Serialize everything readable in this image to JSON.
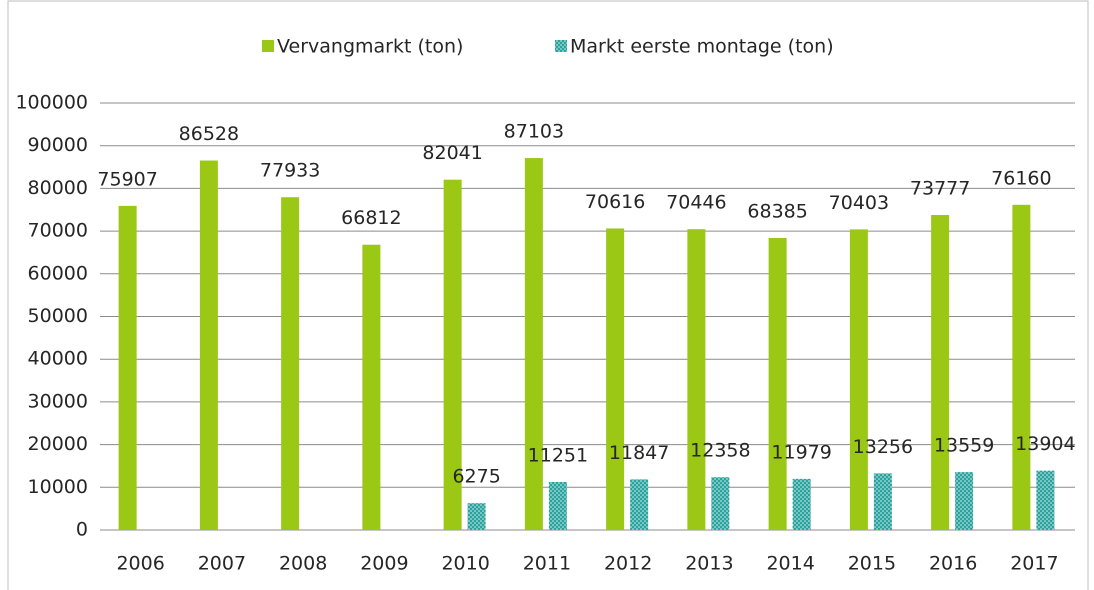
{
  "chart_data": {
    "type": "bar",
    "categories": [
      "2006",
      "2007",
      "2008",
      "2009",
      "2010",
      "2011",
      "2012",
      "2013",
      "2014",
      "2015",
      "2016",
      "2017"
    ],
    "series": [
      {
        "name": "Vervangmarkt (ton)",
        "color": "#9bc814",
        "values": [
          75907,
          86528,
          77933,
          66812,
          82041,
          87103,
          70616,
          70446,
          68385,
          70403,
          73777,
          76160
        ]
      },
      {
        "name": "Markt eerste montage (ton)",
        "color": "#2aa39f",
        "values": [
          null,
          null,
          null,
          null,
          6275,
          11251,
          11847,
          12358,
          11979,
          13256,
          13559,
          13904
        ]
      }
    ],
    "ylim": [
      0,
      100000
    ],
    "yticks": [
      0,
      10000,
      20000,
      30000,
      40000,
      50000,
      60000,
      70000,
      80000,
      90000,
      100000
    ],
    "grid": true,
    "legend": "top"
  }
}
